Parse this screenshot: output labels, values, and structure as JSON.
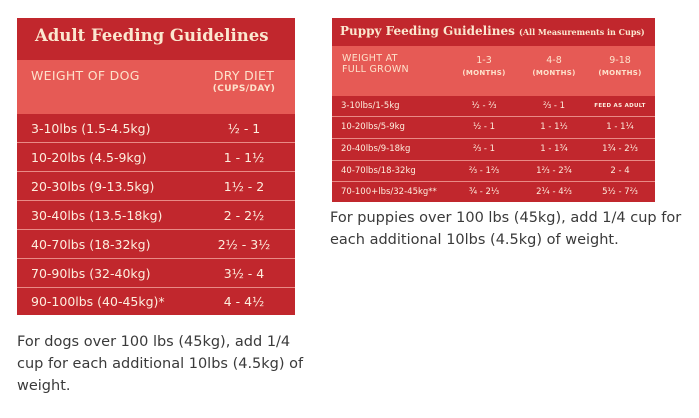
{
  "adult": {
    "title": "Adult Feeding Guidelines",
    "col_weight": "WEIGHT OF DOG",
    "col_diet": "DRY DIET",
    "col_diet_unit": "(CUPS/DAY)",
    "rows": [
      {
        "weight": "3-10lbs (1.5-4.5kg)",
        "amount": "½ - 1"
      },
      {
        "weight": "10-20lbs (4.5-9kg)",
        "amount": "1 - 1½"
      },
      {
        "weight": "20-30lbs (9-13.5kg)",
        "amount": "1½ - 2"
      },
      {
        "weight": "30-40lbs (13.5-18kg)",
        "amount": "2 - 2½"
      },
      {
        "weight": "40-70lbs (18-32kg)",
        "amount": "2½ - 3½"
      },
      {
        "weight": "70-90lbs (32-40kg)",
        "amount": "3½ - 4"
      },
      {
        "weight": "90-100lbs (40-45kg)*",
        "amount": "4 - 4½"
      }
    ],
    "note": "For dogs over 100 lbs (45kg), add 1/4 cup for each additional 10lbs (4.5kg) of weight."
  },
  "puppy": {
    "title": "Puppy Feeding Guidelines",
    "subtitle": "(All Measurements in Cups)",
    "col_weight_1": "WEIGHT AT",
    "col_weight_2": "FULL GROWN",
    "cols": [
      {
        "range": "1-3",
        "unit": "(MONTHS)"
      },
      {
        "range": "4-8",
        "unit": "(MONTHS)"
      },
      {
        "range": "9-18",
        "unit": "(MONTHS)"
      }
    ],
    "rows": [
      {
        "weight": "3-10lbs/1-5kg",
        "m1": "½ - ⅔",
        "m2": "⅔ - 1",
        "m3": "FEED AS ADULT"
      },
      {
        "weight": "10-20lbs/5-9kg",
        "m1": "½ - 1",
        "m2": "1 - 1½",
        "m3": "1 - 1¼"
      },
      {
        "weight": "20-40lbs/9-18kg",
        "m1": "⅔ - 1",
        "m2": "1 - 1¾",
        "m3": "1¾ - 2⅓"
      },
      {
        "weight": "40-70lbs/18-32kg",
        "m1": "⅔ - 1⅔",
        "m2": "1⅔ - 2¾",
        "m3": "2 - 4"
      },
      {
        "weight": "70-100+lbs/32-45kg**",
        "m1": "¾ - 2⅓",
        "m2": "2¼ - 4⅔",
        "m3": "5½ - 7⅔"
      }
    ],
    "note": "For puppies over 100 lbs (45kg), add 1/4 cup for each additional 10lbs (4.5kg) of weight."
  },
  "colors": {
    "card": "#c1272d",
    "header": "#e65a55",
    "text": "#3a3a3a"
  }
}
